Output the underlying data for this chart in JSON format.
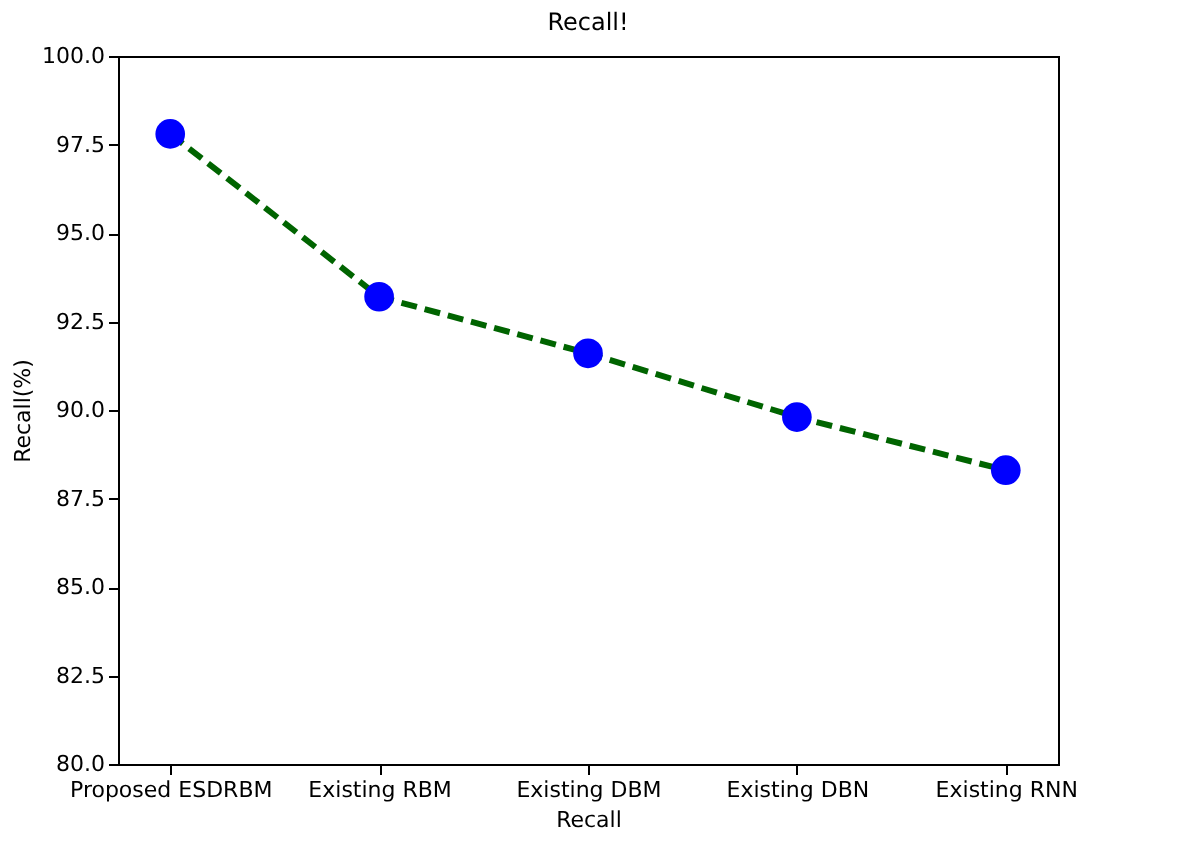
{
  "chart_data": {
    "type": "line",
    "title": "Recall!",
    "xlabel": "Recall",
    "ylabel": "Recall(%)",
    "categories": [
      "Proposed ESDRBM",
      "Existing RBM",
      "Existing DBM",
      "Existing DBN",
      "Existing RNN"
    ],
    "series": [
      {
        "color": "#006400",
        "colors": [
          "#0000ff",
          "#0000ff",
          "#0000ff",
          "#0000ff",
          "#0000ff"
        ],
        "values": [
          97.8,
          93.2,
          91.6,
          89.8,
          88.3
        ]
      }
    ],
    "ylim": [
      80,
      100
    ],
    "yticks": [
      {
        "value": 80,
        "label": "80.0"
      },
      {
        "value": 82.5,
        "label": "82.5"
      },
      {
        "value": 85,
        "label": "85.0"
      },
      {
        "value": 87.5,
        "label": "87.5"
      },
      {
        "value": 90,
        "label": "90.0"
      },
      {
        "value": 92.5,
        "label": "92.5"
      },
      {
        "value": 95,
        "label": "95.0"
      },
      {
        "value": 97.5,
        "label": "97.5"
      },
      {
        "value": 100,
        "label": "100.0"
      }
    ],
    "marker": "circle",
    "line_style": "dashed",
    "grid": false
  }
}
